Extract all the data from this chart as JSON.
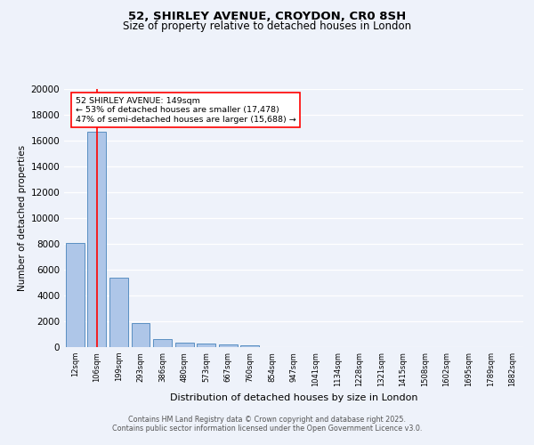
{
  "title1": "52, SHIRLEY AVENUE, CROYDON, CR0 8SH",
  "title2": "Size of property relative to detached houses in London",
  "xlabel": "Distribution of detached houses by size in London",
  "ylabel": "Number of detached properties",
  "categories": [
    "12sqm",
    "106sqm",
    "199sqm",
    "293sqm",
    "386sqm",
    "480sqm",
    "573sqm",
    "667sqm",
    "760sqm",
    "854sqm",
    "947sqm",
    "1041sqm",
    "1134sqm",
    "1228sqm",
    "1321sqm",
    "1415sqm",
    "1508sqm",
    "1602sqm",
    "1695sqm",
    "1789sqm",
    "1882sqm"
  ],
  "bar_heights": [
    8100,
    16700,
    5350,
    1850,
    650,
    350,
    270,
    200,
    160,
    0,
    0,
    0,
    0,
    0,
    0,
    0,
    0,
    0,
    0,
    0,
    0
  ],
  "bar_color": "#aec6e8",
  "bar_edge_color": "#5a8fc2",
  "vline_x": 1,
  "vline_color": "red",
  "ylim": [
    0,
    20000
  ],
  "yticks": [
    0,
    2000,
    4000,
    6000,
    8000,
    10000,
    12000,
    14000,
    16000,
    18000,
    20000
  ],
  "annotation_text": "52 SHIRLEY AVENUE: 149sqm\n← 53% of detached houses are smaller (17,478)\n47% of semi-detached houses are larger (15,688) →",
  "annotation_box_color": "white",
  "annotation_box_edge_color": "red",
  "footer1": "Contains HM Land Registry data © Crown copyright and database right 2025.",
  "footer2": "Contains public sector information licensed under the Open Government Licence v3.0.",
  "background_color": "#eef2fa",
  "grid_color": "white"
}
